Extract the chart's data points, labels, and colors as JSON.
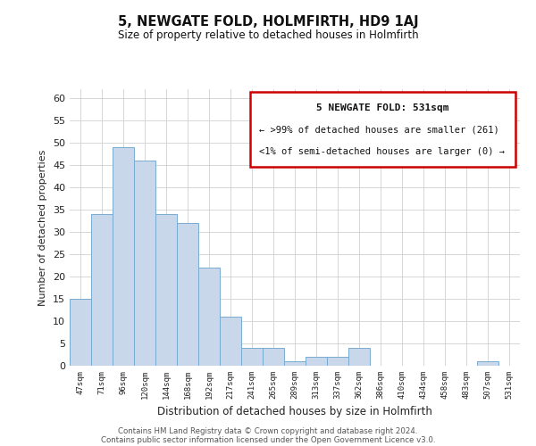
{
  "title": "5, NEWGATE FOLD, HOLMFIRTH, HD9 1AJ",
  "subtitle": "Size of property relative to detached houses in Holmfirth",
  "xlabel": "Distribution of detached houses by size in Holmfirth",
  "ylabel": "Number of detached properties",
  "categories": [
    "47sqm",
    "71sqm",
    "96sqm",
    "120sqm",
    "144sqm",
    "168sqm",
    "192sqm",
    "217sqm",
    "241sqm",
    "265sqm",
    "289sqm",
    "313sqm",
    "337sqm",
    "362sqm",
    "386sqm",
    "410sqm",
    "434sqm",
    "458sqm",
    "483sqm",
    "507sqm",
    "531sqm"
  ],
  "values": [
    15,
    34,
    49,
    46,
    34,
    32,
    22,
    11,
    4,
    4,
    1,
    2,
    2,
    4,
    0,
    0,
    0,
    0,
    0,
    1,
    0
  ],
  "bar_color": "#c8d8ea",
  "bar_edge_color": "#7aaad0",
  "ylim": [
    0,
    62
  ],
  "yticks": [
    0,
    5,
    10,
    15,
    20,
    25,
    30,
    35,
    40,
    45,
    50,
    55,
    60
  ],
  "legend_title": "5 NEWGATE FOLD: 531sqm",
  "legend_line1": "← >99% of detached houses are smaller (261)",
  "legend_line2": "<1% of semi-detached houses are larger (0) →",
  "legend_box_edge_color": "#cc0000",
  "footer_line1": "Contains HM Land Registry data © Crown copyright and database right 2024.",
  "footer_line2": "Contains public sector information licensed under the Open Government Licence v3.0.",
  "background_color": "#ffffff",
  "grid_color": "#d0d0d0"
}
